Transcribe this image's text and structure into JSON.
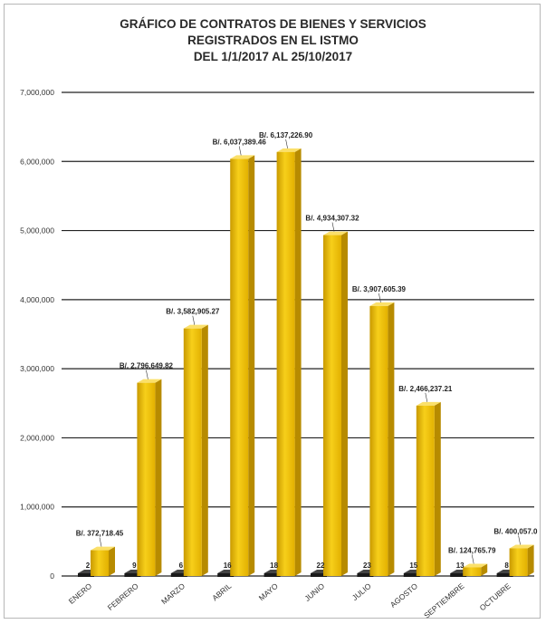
{
  "chart_data": {
    "type": "bar",
    "title_lines": [
      "GRÁFICO DE CONTRATOS DE BIENES Y SERVICIOS",
      "REGISTRADOS EN EL ISTMO",
      "DEL 1/1/2017 AL 25/10/2017"
    ],
    "xlabel": "",
    "ylabel": "",
    "ylim": [
      0,
      7000000
    ],
    "yticks": [
      0,
      1000000,
      2000000,
      3000000,
      4000000,
      5000000,
      6000000,
      7000000
    ],
    "ytick_labels": [
      "0",
      "1,000,000",
      "2,000,000",
      "3,000,000",
      "4,000,000",
      "5,000,000",
      "6,000,000",
      "7,000,000"
    ],
    "grid": true,
    "categories": [
      "ENERO",
      "FEBRERO",
      "MARZO",
      "ABRIL",
      "MAYO",
      "JUNIO",
      "JULIO",
      "AGOSTO",
      "SEPTIEMBRE",
      "OCTUBRE"
    ],
    "series": [
      {
        "values": [
          2,
          9,
          6,
          16,
          18,
          22,
          23,
          15,
          13,
          8
        ],
        "labels": [
          "2",
          "9",
          "6",
          "16",
          "18",
          "22",
          "23",
          "15",
          "13",
          "8"
        ],
        "color": "#1a1a1a"
      },
      {
        "values": [
          372718.45,
          2796649.82,
          3582905.27,
          6037389.46,
          6137226.9,
          4934307.32,
          3907605.39,
          2466237.21,
          124765.79,
          400057.0
        ],
        "labels": [
          "B/. 372,718.45",
          "B/. 2,796,649.82",
          "B/. 3,582,905.27",
          "B/. 6,037,389.46",
          "B/. 6,137,226.90",
          "B/. 4,934,307.32",
          "B/. 3,907,605.39",
          "B/. 2,466,237.21",
          "B/. 124,765.79",
          "B/. 400,057.0"
        ],
        "color": "#f2c300"
      }
    ]
  }
}
